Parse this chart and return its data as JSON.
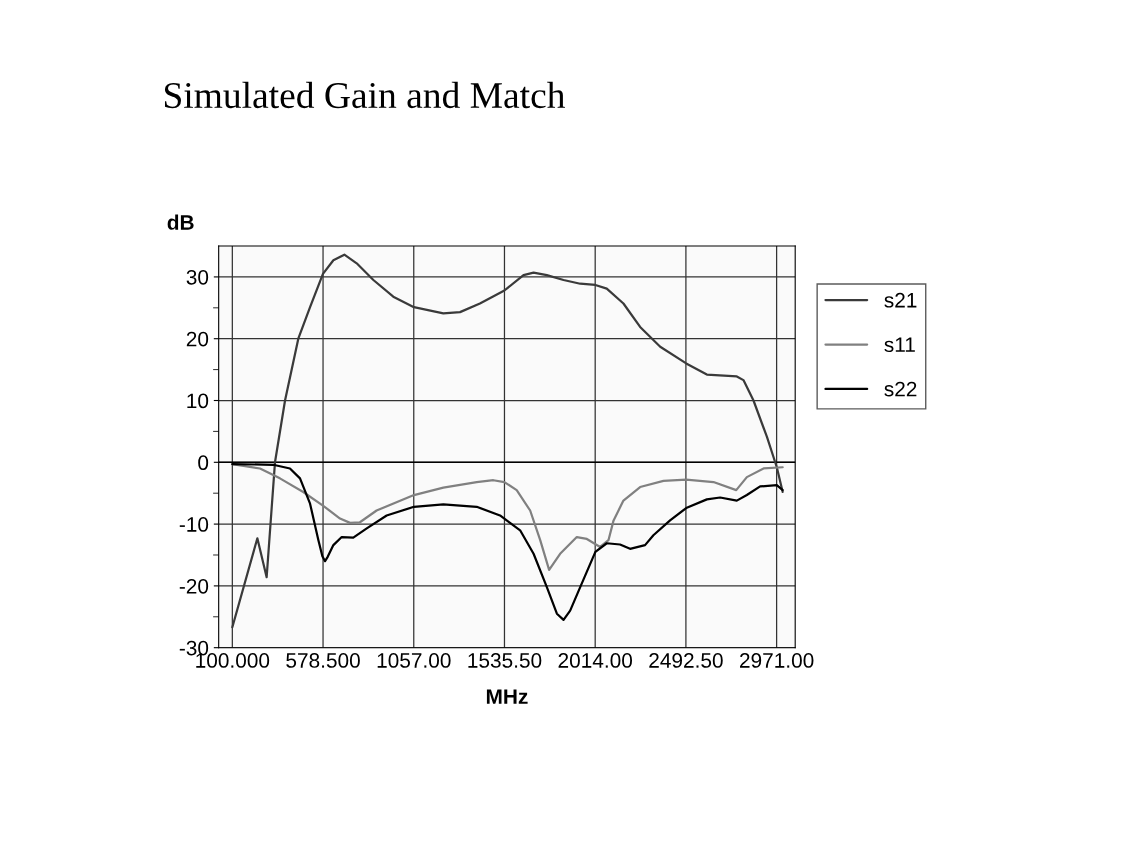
{
  "chart_data": {
    "type": "line",
    "title": "Simulated Gain and Match",
    "xlabel": "MHz",
    "ylabel": "dB",
    "xlim": [
      28,
      3069
    ],
    "ylim": [
      -30,
      35
    ],
    "xticks": [
      {
        "value": 100,
        "label": "100.000"
      },
      {
        "value": 578.5,
        "label": "578.500"
      },
      {
        "value": 1057,
        "label": "1057.00"
      },
      {
        "value": 1535.5,
        "label": "1535.50"
      },
      {
        "value": 2014,
        "label": "2014.00"
      },
      {
        "value": 2492.5,
        "label": "2492.50"
      },
      {
        "value": 2971,
        "label": "2971.00"
      }
    ],
    "yticks": [
      -30,
      {
        "value": -25,
        "label": null
      },
      -20,
      {
        "value": -15,
        "label": null
      },
      -10,
      {
        "value": -5,
        "label": null
      },
      0,
      {
        "value": 5,
        "label": null
      },
      10,
      {
        "value": 15,
        "label": null
      },
      20,
      {
        "value": 25,
        "label": null
      },
      30
    ],
    "grid": true,
    "legend": "right",
    "marker": "none",
    "line_style": "solid",
    "series": [
      {
        "name": "s21",
        "color": "#3a3a3a",
        "x": [
          100,
          232,
          281,
          325,
          378,
          448,
          510,
          578,
          633,
          691,
          756,
          844,
          949,
          1058,
          1213,
          1301,
          1406,
          1535,
          1636,
          1689,
          1759,
          1847,
          1935,
          2015,
          2075,
          2163,
          2251,
          2357,
          2494,
          2603,
          2761,
          2796,
          2849,
          2920,
          2972,
          3003
        ],
        "values": [
          -26.7,
          -12.3,
          -18.6,
          0,
          10.0,
          20.0,
          25.1,
          30.5,
          32.7,
          33.6,
          32.2,
          29.5,
          26.8,
          25.1,
          24.1,
          24.3,
          25.7,
          27.8,
          30.3,
          30.7,
          30.3,
          29.5,
          28.9,
          28.7,
          28.1,
          25.7,
          21.9,
          18.7,
          16.0,
          14.2,
          13.9,
          13.3,
          10.0,
          4.1,
          -0.8,
          -4.8
        ]
      },
      {
        "name": "s11",
        "color": "#808080",
        "x": [
          100,
          246,
          351,
          474,
          578,
          668,
          721,
          773,
          861,
          1058,
          1213,
          1389,
          1477,
          1535,
          1600,
          1671,
          1724,
          1771,
          1829,
          1917,
          1970,
          2040,
          2084,
          2111,
          2163,
          2251,
          2374,
          2494,
          2638,
          2758,
          2814,
          2902,
          3003
        ],
        "values": [
          -0.3,
          -1.0,
          -2.6,
          -4.8,
          -7.0,
          -9.1,
          -9.8,
          -9.7,
          -7.8,
          -5.3,
          -4.1,
          -3.2,
          -2.9,
          -3.2,
          -4.5,
          -7.8,
          -12.6,
          -17.4,
          -14.8,
          -12.1,
          -12.4,
          -13.7,
          -12.6,
          -9.4,
          -6.2,
          -4.0,
          -3.0,
          -2.8,
          -3.2,
          -4.5,
          -2.4,
          -1.0,
          -0.8
        ]
      },
      {
        "name": "s22",
        "color": "#000000",
        "x": [
          100,
          316,
          404,
          457,
          510,
          554,
          575,
          589,
          603,
          633,
          677,
          738,
          809,
          914,
          1058,
          1213,
          1389,
          1512,
          1618,
          1689,
          1759,
          1812,
          1847,
          1882,
          1935,
          2015,
          2075,
          2145,
          2198,
          2277,
          2321,
          2409,
          2494,
          2603,
          2673,
          2761,
          2814,
          2884,
          2972,
          3003
        ],
        "values": [
          -0.3,
          -0.4,
          -1.0,
          -2.6,
          -6.7,
          -12.6,
          -15.2,
          -16.0,
          -15.3,
          -13.4,
          -12.1,
          -12.2,
          -10.7,
          -8.6,
          -7.2,
          -6.8,
          -7.2,
          -8.6,
          -11.0,
          -14.8,
          -20.2,
          -24.5,
          -25.5,
          -24.0,
          -20.2,
          -14.5,
          -13.1,
          -13.3,
          -14.0,
          -13.4,
          -11.8,
          -9.4,
          -7.4,
          -6.0,
          -5.7,
          -6.2,
          -5.3,
          -3.9,
          -3.7,
          -4.5
        ]
      }
    ]
  }
}
